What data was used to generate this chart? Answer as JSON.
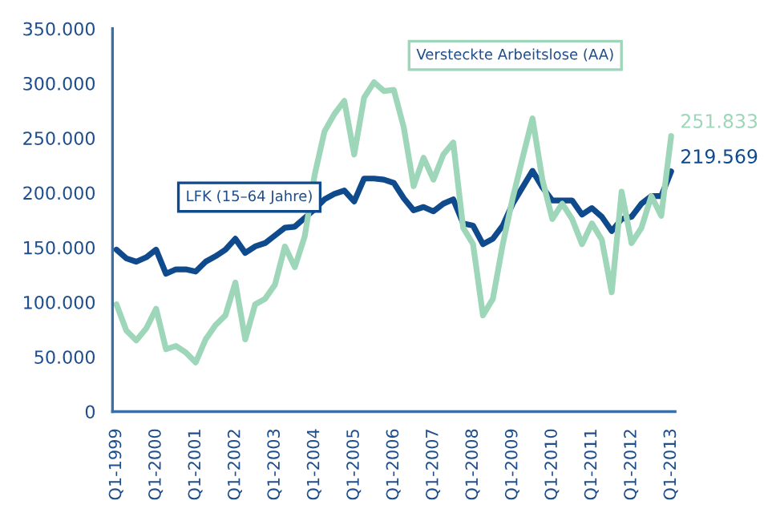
{
  "chart_data": {
    "type": "line",
    "categories": [
      "Q1-1999",
      null,
      null,
      null,
      "Q1-2000",
      null,
      null,
      null,
      "Q1-2001",
      null,
      null,
      null,
      "Q1-2002",
      null,
      null,
      null,
      "Q1-2003",
      null,
      null,
      null,
      "Q1-2004",
      null,
      null,
      null,
      "Q1-2005",
      null,
      null,
      null,
      "Q1-2006",
      null,
      null,
      null,
      "Q1-2007",
      null,
      null,
      null,
      "Q1-2008",
      null,
      null,
      null,
      "Q1-2009",
      null,
      null,
      null,
      "Q1-2010",
      null,
      null,
      null,
      "Q1-2011",
      null,
      null,
      null,
      "Q1-2012",
      null,
      null,
      null,
      "Q1-2013"
    ],
    "series": [
      {
        "name": "LFK (15–64 Jahre)",
        "color": "#0e4a8c",
        "values": [
          148000,
          140000,
          137000,
          141000,
          148000,
          126000,
          130000,
          130000,
          128000,
          137000,
          142000,
          148000,
          158000,
          145000,
          151000,
          154000,
          161000,
          168000,
          169000,
          177000,
          185000,
          194000,
          199000,
          202000,
          192000,
          213000,
          213000,
          212000,
          209000,
          195000,
          184000,
          187000,
          183000,
          190000,
          194000,
          172000,
          170000,
          153000,
          158000,
          170000,
          190000,
          205000,
          220000,
          205000,
          193000,
          193000,
          193000,
          180000,
          186000,
          178000,
          165000,
          176000,
          178000,
          190000,
          197000,
          197000,
          219569
        ],
        "value_labels": [
          null,
          null,
          null,
          null,
          null,
          null,
          null,
          null,
          null,
          null,
          null,
          null,
          null,
          null,
          null,
          null,
          null,
          null,
          null,
          null,
          null,
          null,
          null,
          null,
          null,
          null,
          null,
          null,
          null,
          null,
          null,
          null,
          null,
          null,
          null,
          null,
          null,
          null,
          null,
          null,
          null,
          null,
          null,
          null,
          null,
          null,
          null,
          null,
          null,
          null,
          null,
          null,
          null,
          null,
          null,
          null,
          "219.569"
        ]
      },
      {
        "name": "Versteckte Arbeitslose (AA)",
        "color": "#9dd6b9",
        "values": [
          98000,
          74000,
          65000,
          76000,
          94000,
          57000,
          60000,
          54000,
          45000,
          66000,
          79000,
          88000,
          118000,
          66000,
          98000,
          103000,
          116000,
          151000,
          132000,
          160000,
          216000,
          256000,
          272000,
          284000,
          235000,
          287000,
          301000,
          293000,
          294000,
          260000,
          206000,
          232000,
          212000,
          235000,
          246000,
          168000,
          153000,
          88000,
          103000,
          153000,
          195000,
          232000,
          268000,
          212000,
          176000,
          190000,
          176000,
          153000,
          172000,
          157000,
          109000,
          201000,
          154000,
          168000,
          197000,
          179000,
          251833
        ],
        "value_labels": [
          null,
          null,
          null,
          null,
          null,
          null,
          null,
          null,
          null,
          null,
          null,
          null,
          null,
          null,
          null,
          null,
          null,
          null,
          null,
          null,
          null,
          null,
          null,
          null,
          null,
          null,
          null,
          null,
          null,
          null,
          null,
          null,
          null,
          null,
          null,
          null,
          null,
          null,
          null,
          null,
          null,
          null,
          null,
          null,
          null,
          null,
          null,
          null,
          null,
          null,
          null,
          null,
          null,
          null,
          null,
          null,
          "251.833"
        ]
      }
    ],
    "ylim": [
      0,
      350000
    ],
    "yticks": [
      {
        "value": 0,
        "label": "0"
      },
      {
        "value": 50000,
        "label": "50.000"
      },
      {
        "value": 100000,
        "label": "100.000"
      },
      {
        "value": 150000,
        "label": "150.000"
      },
      {
        "value": 200000,
        "label": "200.000"
      },
      {
        "value": 250000,
        "label": "250.000"
      },
      {
        "value": 300000,
        "label": "300.000"
      },
      {
        "value": 350000,
        "label": "350.000"
      }
    ],
    "grid": false,
    "legend": false,
    "marker": "none",
    "line_style": "solid"
  }
}
